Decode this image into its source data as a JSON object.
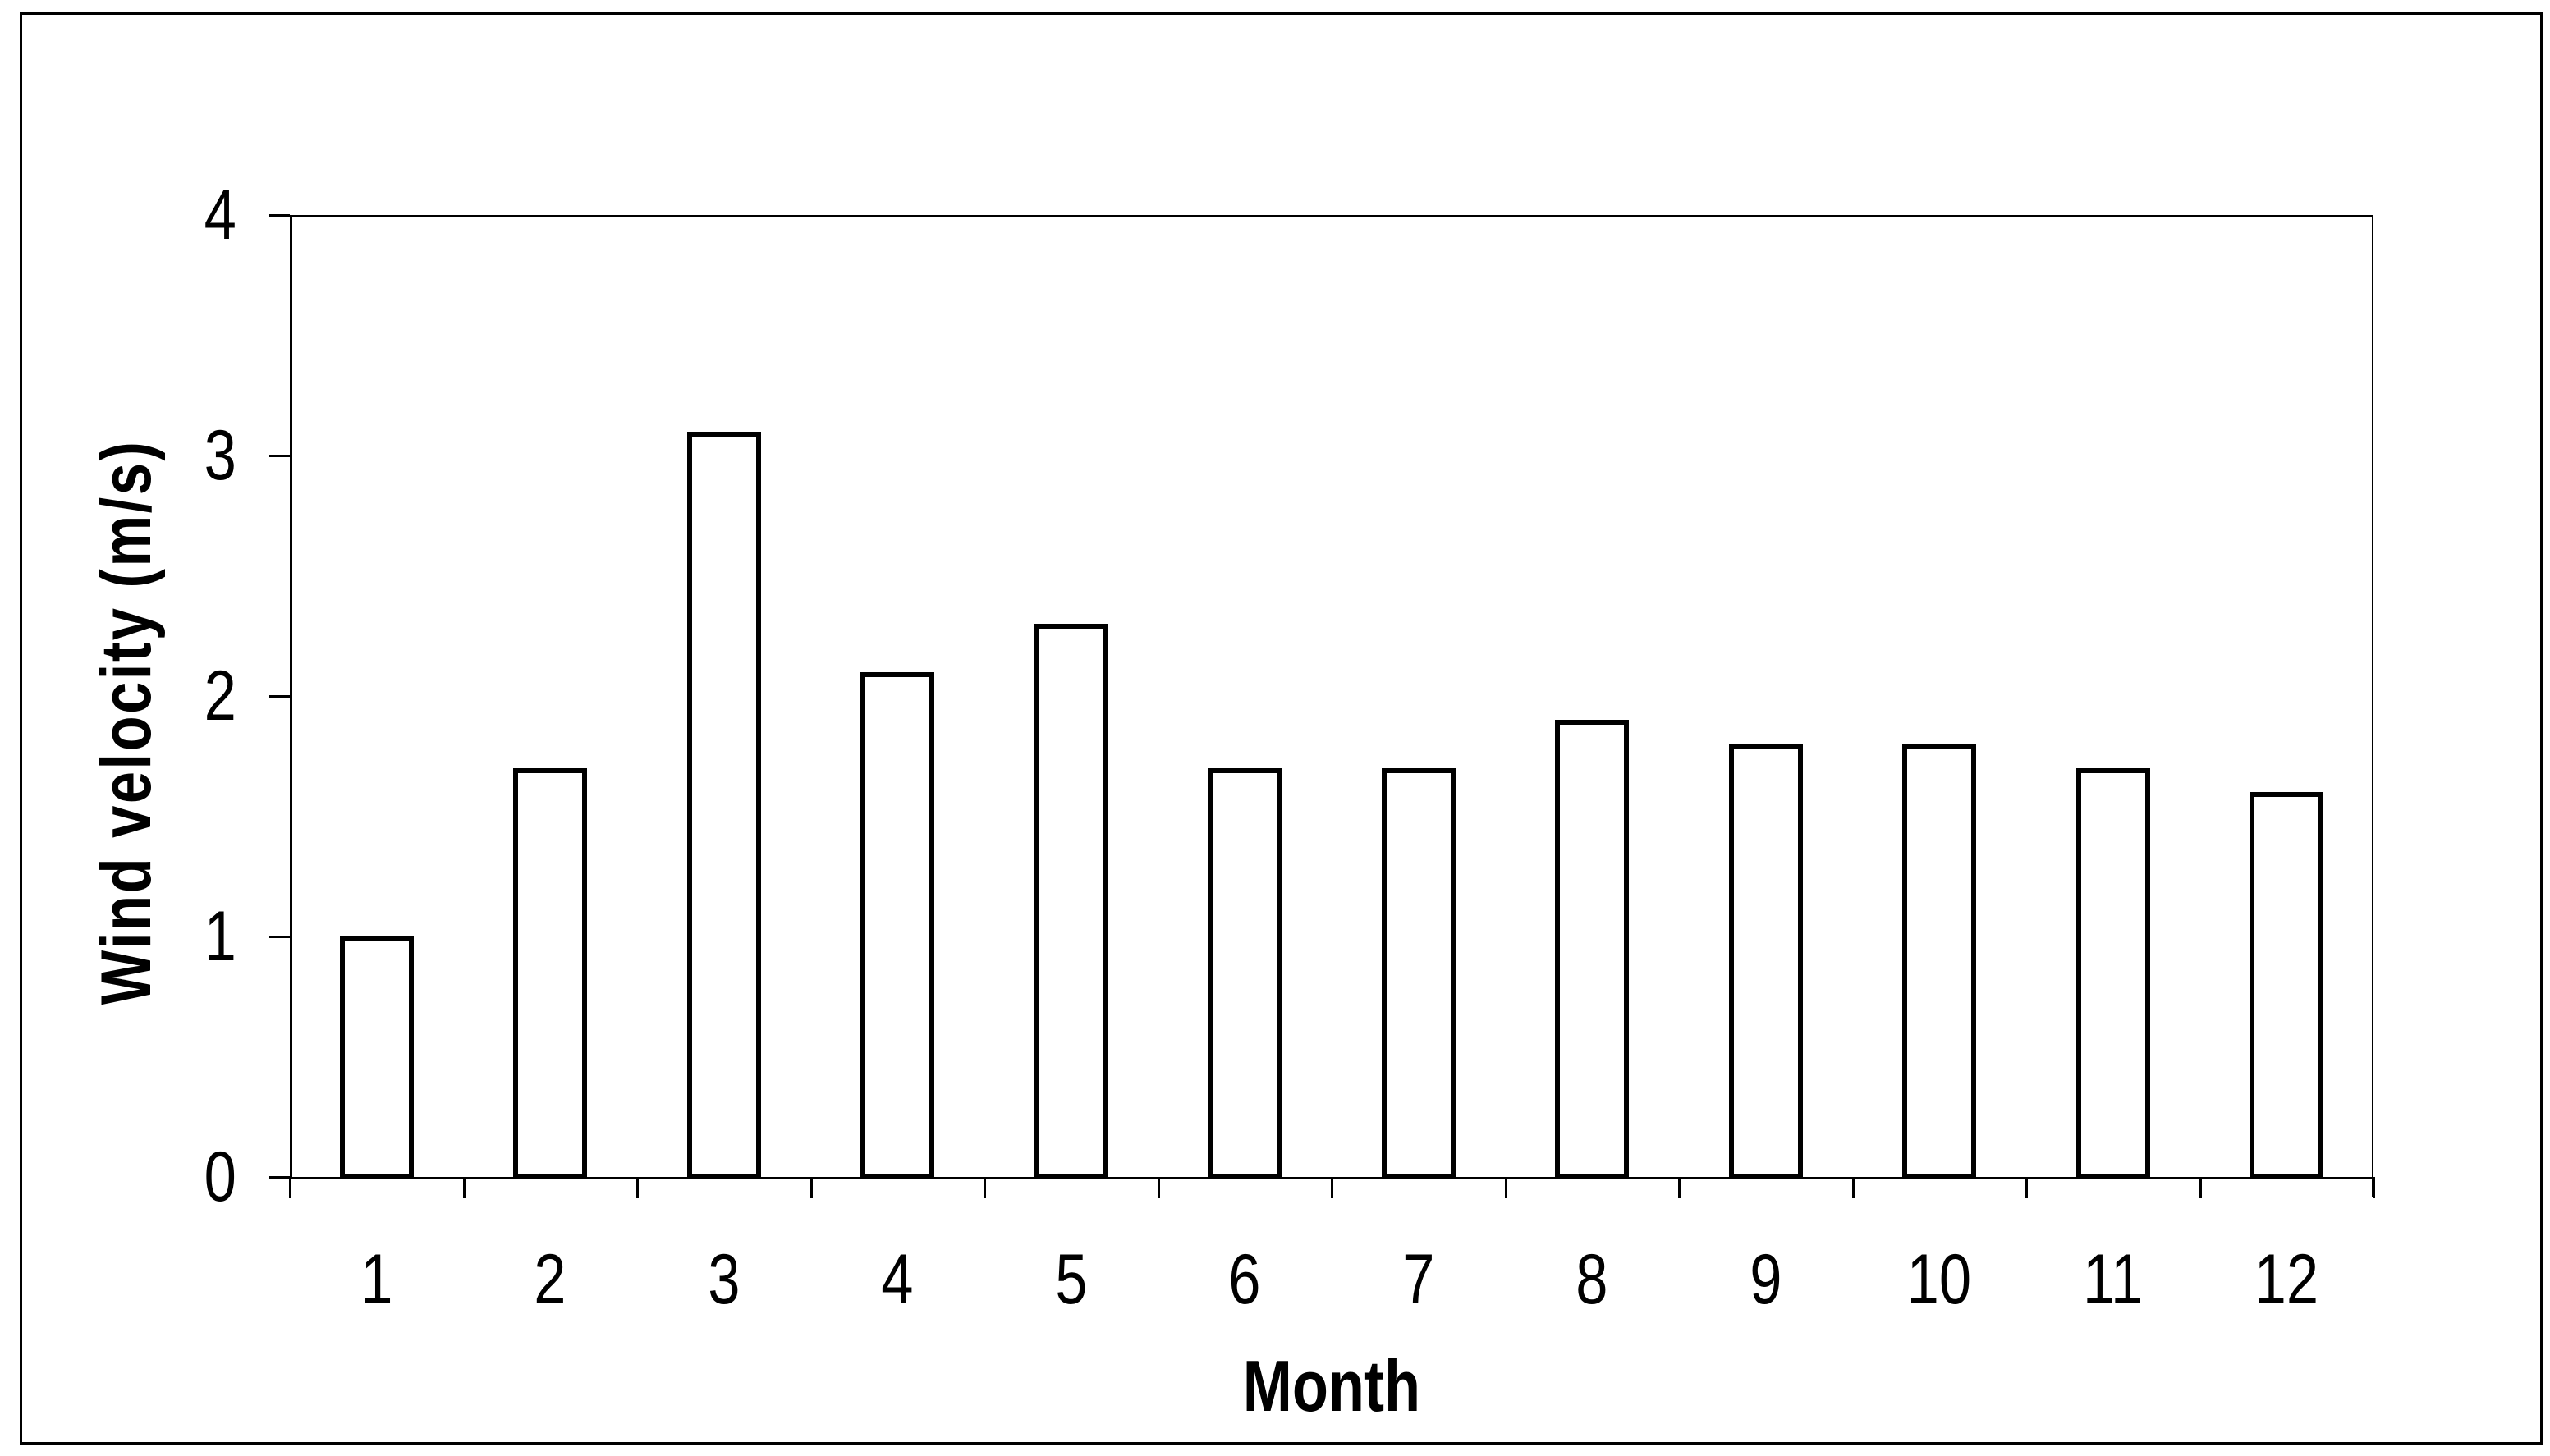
{
  "figure": {
    "background_color": "#ffffff",
    "foreground_color": "#000000"
  },
  "chart_data": {
    "type": "bar",
    "title": "",
    "xlabel": "Month",
    "ylabel": "Wind velocity  (m/s)",
    "categories": [
      "1",
      "2",
      "3",
      "4",
      "5",
      "6",
      "7",
      "8",
      "9",
      "10",
      "11",
      "12"
    ],
    "values": [
      1.0,
      1.7,
      3.1,
      2.1,
      2.3,
      1.7,
      1.7,
      1.9,
      1.8,
      1.8,
      1.7,
      1.6
    ],
    "ylim": [
      0,
      4
    ],
    "y_ticks": [
      0,
      1,
      2,
      3,
      4
    ],
    "grid": "off",
    "legend": "none",
    "bar_fill": "#ffffff",
    "bar_border": "#000000",
    "plot_frame": "top-right-border-visible"
  }
}
